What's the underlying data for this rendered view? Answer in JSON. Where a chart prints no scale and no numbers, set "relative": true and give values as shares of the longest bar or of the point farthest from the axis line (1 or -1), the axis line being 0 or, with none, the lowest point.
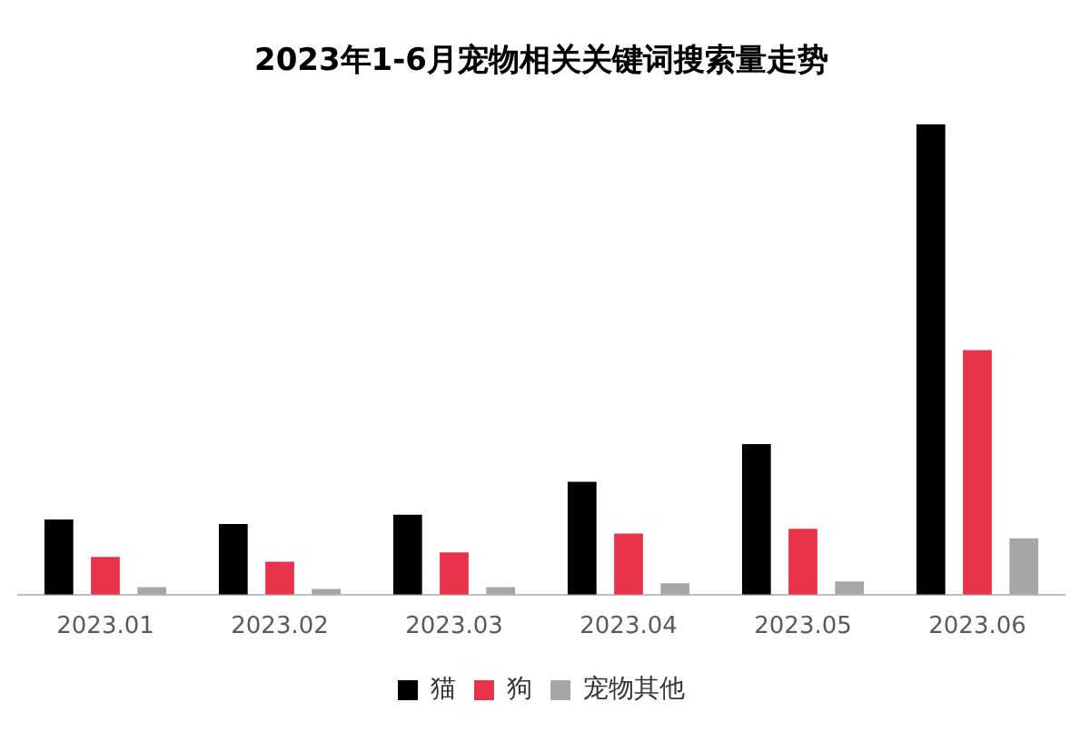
{
  "chart_data": {
    "type": "bar",
    "title": "2023年1-6月宠物相关关键词搜索量走势",
    "relative": true,
    "categories": [
      "2023.01",
      "2023.02",
      "2023.03",
      "2023.04",
      "2023.05",
      "2023.06"
    ],
    "series": [
      {
        "name": "猫",
        "color": "#000000",
        "values": [
          0.16,
          0.15,
          0.17,
          0.24,
          0.32,
          1
        ]
      },
      {
        "name": "狗",
        "color": "#e8334a",
        "values": [
          0.08,
          0.07,
          0.09,
          0.13,
          0.14,
          0.52
        ]
      },
      {
        "name": "宠物其他",
        "color": "#a6a6a6",
        "values": [
          0.016,
          0.012,
          0.016,
          0.024,
          0.028,
          0.12
        ]
      }
    ],
    "legend": "bottom",
    "grid": false
  }
}
